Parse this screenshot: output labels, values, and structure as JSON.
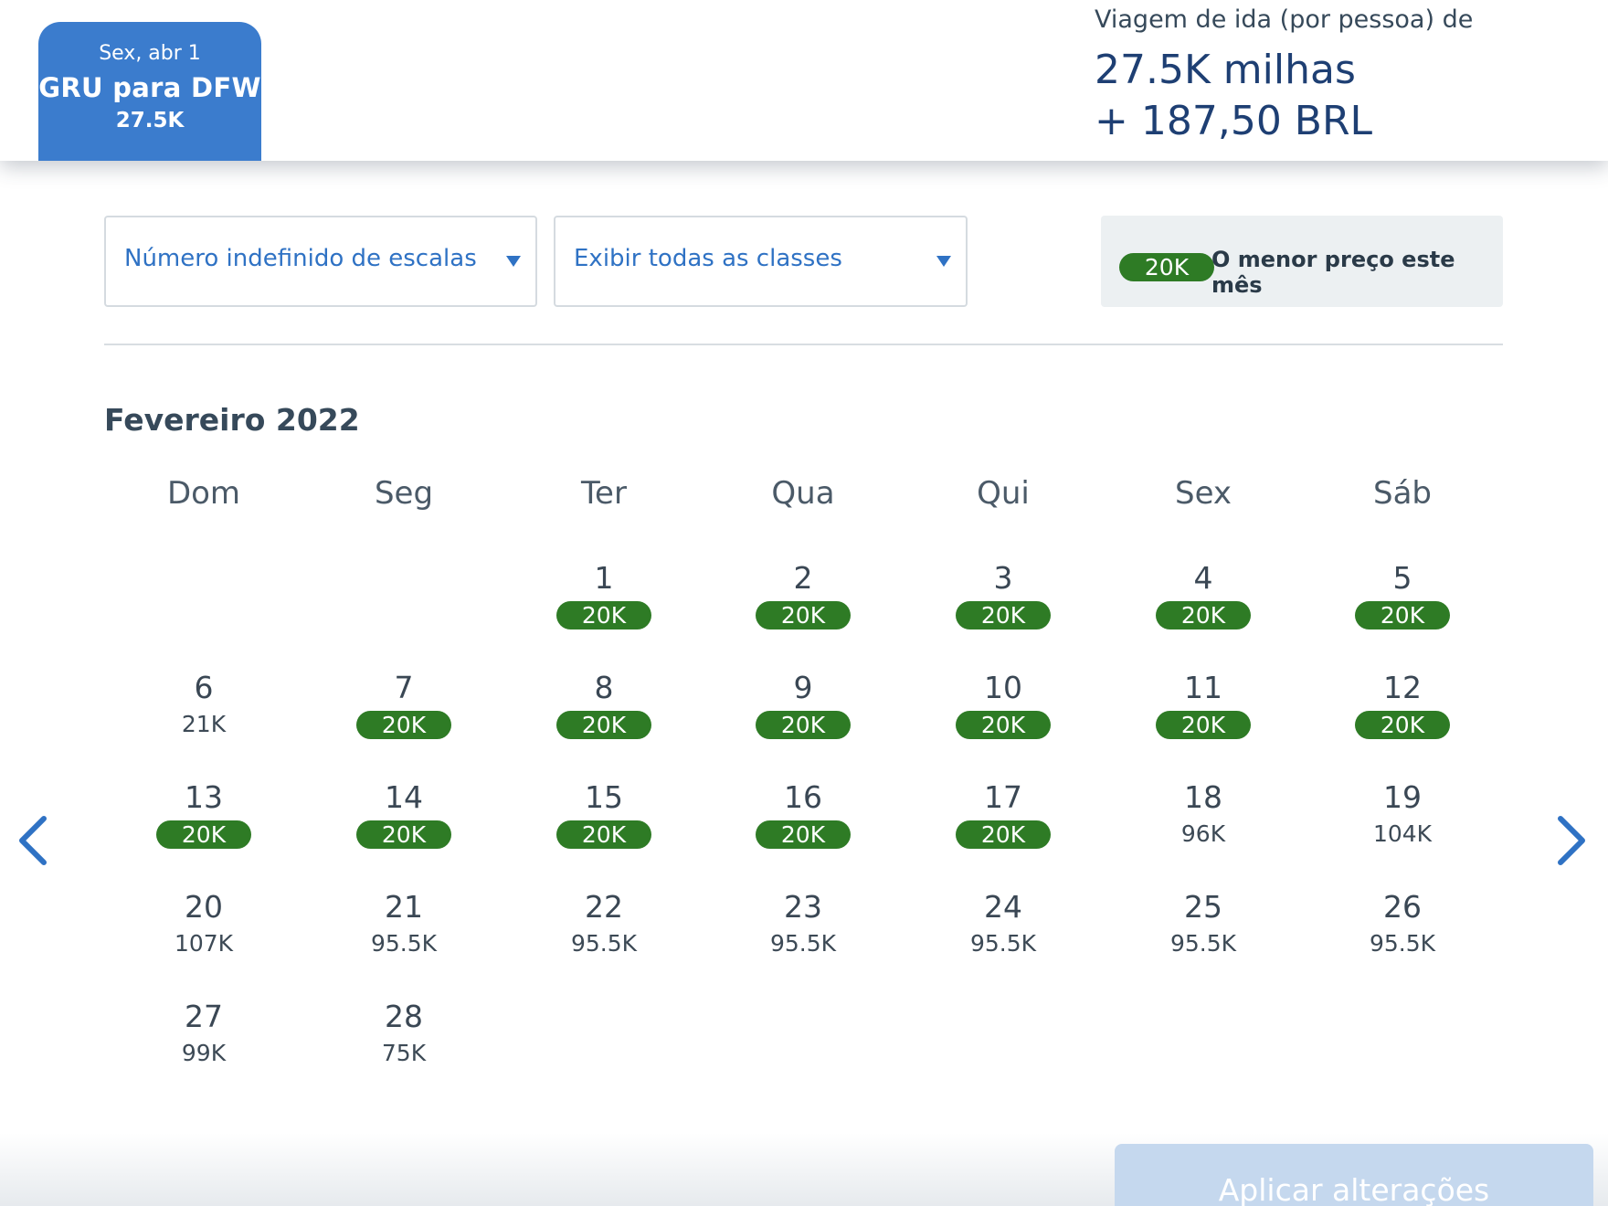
{
  "trip_tab": {
    "date": "Sex, abr 1",
    "route": "GRU para DFW",
    "price": "27.5K"
  },
  "fare": {
    "label": "Viagem de ida (por pessoa) de",
    "miles": "27.5K milhas",
    "cash": "+ 187,50 BRL"
  },
  "filters": {
    "stops": "Número indefinido de escalas",
    "classes": "Exibir todas as classes"
  },
  "legend": {
    "badge": "20K",
    "text": "O menor preço este mês"
  },
  "calendar": {
    "month": "Fevereiro 2022",
    "weekdays": [
      "Dom",
      "Seg",
      "Ter",
      "Qua",
      "Qui",
      "Sex",
      "Sáb"
    ],
    "days": [
      {
        "day": "1",
        "price": "20K",
        "lowest": true
      },
      {
        "day": "2",
        "price": "20K",
        "lowest": true
      },
      {
        "day": "3",
        "price": "20K",
        "lowest": true
      },
      {
        "day": "4",
        "price": "20K",
        "lowest": true
      },
      {
        "day": "5",
        "price": "20K",
        "lowest": true
      },
      {
        "day": "6",
        "price": "21K",
        "lowest": false
      },
      {
        "day": "7",
        "price": "20K",
        "lowest": true
      },
      {
        "day": "8",
        "price": "20K",
        "lowest": true
      },
      {
        "day": "9",
        "price": "20K",
        "lowest": true
      },
      {
        "day": "10",
        "price": "20K",
        "lowest": true
      },
      {
        "day": "11",
        "price": "20K",
        "lowest": true
      },
      {
        "day": "12",
        "price": "20K",
        "lowest": true
      },
      {
        "day": "13",
        "price": "20K",
        "lowest": true
      },
      {
        "day": "14",
        "price": "20K",
        "lowest": true
      },
      {
        "day": "15",
        "price": "20K",
        "lowest": true
      },
      {
        "day": "16",
        "price": "20K",
        "lowest": true
      },
      {
        "day": "17",
        "price": "20K",
        "lowest": true
      },
      {
        "day": "18",
        "price": "96K",
        "lowest": false
      },
      {
        "day": "19",
        "price": "104K",
        "lowest": false
      },
      {
        "day": "20",
        "price": "107K",
        "lowest": false
      },
      {
        "day": "21",
        "price": "95.5K",
        "lowest": false
      },
      {
        "day": "22",
        "price": "95.5K",
        "lowest": false
      },
      {
        "day": "23",
        "price": "95.5K",
        "lowest": false
      },
      {
        "day": "24",
        "price": "95.5K",
        "lowest": false
      },
      {
        "day": "25",
        "price": "95.5K",
        "lowest": false
      },
      {
        "day": "26",
        "price": "95.5K",
        "lowest": false
      },
      {
        "day": "27",
        "price": "99K",
        "lowest": false
      },
      {
        "day": "28",
        "price": "75K",
        "lowest": false
      }
    ],
    "prev_icon": "chevron-left-icon",
    "next_icon": "chevron-right-icon"
  },
  "apply_label": "Aplicar alterações",
  "colors": {
    "accent": "#3b7ccd",
    "lowest": "#2e7b25",
    "link": "#2f72c4",
    "dark_blue": "#1e3f73"
  }
}
